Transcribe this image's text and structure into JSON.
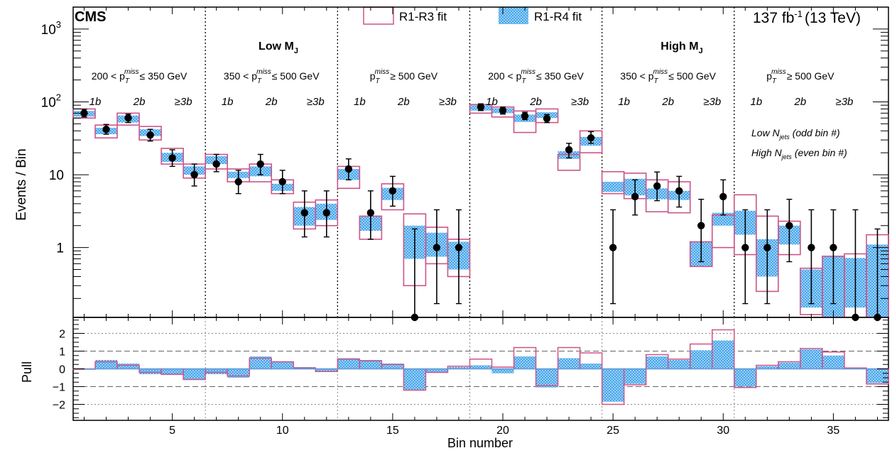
{
  "header": {
    "experiment": "CMS",
    "lumi_value": "137 fb",
    "lumi_exp": "-1",
    "lumi_energy": "(13 TeV)"
  },
  "legend": {
    "r1r3": "R1-R3 fit",
    "r1r4": "R1-R4 fit"
  },
  "region_labels": {
    "low_main": "Low M",
    "low_sub": "J",
    "high_main": "High M",
    "high_sub": "J"
  },
  "met_labels": [
    {
      "pre": "200 < p",
      "sub": "T",
      "sup": "miss",
      "post": "≤ 350 GeV"
    },
    {
      "pre": "350 < p",
      "sub": "T",
      "sup": "miss",
      "post": "≤ 500 GeV"
    },
    {
      "pre": "p",
      "sub": "T",
      "sup": "miss",
      "post": "≥ 500 GeV"
    },
    {
      "pre": "200 < p",
      "sub": "T",
      "sup": "miss",
      "post": "≤ 350 GeV"
    },
    {
      "pre": "350 < p",
      "sub": "T",
      "sup": "miss",
      "post": "≤ 500 GeV"
    },
    {
      "pre": "p",
      "sub": "T",
      "sup": "miss",
      "post": "≥ 500 GeV"
    }
  ],
  "nb_labels": [
    "1b",
    "2b",
    "≥3b"
  ],
  "njets_labels": {
    "odd": {
      "pre": "Low N",
      "sub": "jets",
      "post": "(odd bin #)"
    },
    "even": {
      "pre": "High N",
      "sub": "jets",
      "post": "(even bin #)"
    }
  },
  "chart_data": {
    "type": "bar",
    "xlabel": "Bin number",
    "ylabel": "Events / Bin",
    "pull_ylabel": "Pull",
    "xlim": [
      0.5,
      37.5
    ],
    "ylim": [
      0.11,
      2000
    ],
    "y_scale": "log",
    "pull_ylim": [
      -2.9,
      2.9
    ],
    "x_ticks": [
      5,
      10,
      15,
      20,
      25,
      30,
      35
    ],
    "y_ticks": [
      {
        "value": 1000,
        "base": "10",
        "exp": "3"
      },
      {
        "value": 100,
        "base": "10",
        "exp": "2"
      },
      {
        "value": 10,
        "base": "10",
        "exp": ""
      },
      {
        "value": 1,
        "base": "1",
        "exp": ""
      }
    ],
    "pull_ticks": [
      "2",
      "1",
      "0",
      "−1",
      "−2"
    ],
    "pull_tick_values": [
      2,
      1,
      0,
      -1,
      -2
    ],
    "dividers": [
      6.5,
      12.5,
      18.5,
      24.5,
      30.5
    ],
    "bins": [
      1,
      2,
      3,
      4,
      5,
      6,
      7,
      8,
      9,
      10,
      11,
      12,
      13,
      14,
      15,
      16,
      17,
      18,
      19,
      20,
      21,
      22,
      23,
      24,
      25,
      26,
      27,
      28,
      29,
      30,
      31,
      32,
      33,
      34,
      35,
      36,
      37
    ],
    "series": [
      {
        "name": "R1-R3 fit",
        "style": "hollow",
        "color": "#cc5588",
        "low": [
          60,
          32,
          48,
          30,
          14,
          9,
          12,
          8,
          8,
          5.5,
          1.8,
          2,
          6.5,
          1.3,
          3.3,
          0.3,
          0.6,
          0.4,
          70,
          62,
          38,
          52,
          11.5,
          20,
          5.5,
          4.7,
          3.1,
          3,
          0.55,
          1,
          0.8,
          0.25,
          0.8,
          0.12,
          0.05,
          0.04,
          0.03
        ],
        "high": [
          80,
          48,
          70,
          46,
          23,
          14,
          19,
          12,
          14,
          8.5,
          4.2,
          4.5,
          13,
          2.7,
          7.5,
          2.9,
          1.9,
          1.3,
          92,
          85,
          75,
          80,
          19,
          40,
          11,
          10.5,
          8.5,
          8,
          1.2,
          2.8,
          5.3,
          2.7,
          2.3,
          0.52,
          0.76,
          0.82,
          1.5
        ]
      },
      {
        "name": "R1-R4 fit",
        "style": "hatched",
        "color": "#4aa8e8",
        "low": [
          63,
          36,
          52,
          34,
          15,
          10,
          14,
          9,
          9.5,
          6,
          2,
          2.4,
          8.5,
          1.7,
          4.5,
          0.7,
          0.75,
          0.5,
          76,
          70,
          53,
          60,
          16.5,
          25,
          5.8,
          5.2,
          4.6,
          4.5,
          0.55,
          2,
          1.5,
          0.4,
          1.1,
          0.15,
          0.1,
          0.15,
          0.1
        ],
        "high": [
          75,
          44,
          65,
          42,
          20,
          13,
          18,
          11,
          13,
          7.5,
          3.6,
          4,
          12,
          2.7,
          6.6,
          2,
          1.6,
          1.2,
          90,
          82,
          67,
          72,
          21,
          33,
          8,
          8.8,
          6.5,
          6,
          1.2,
          3,
          3.2,
          1.3,
          2,
          0.5,
          0.75,
          0.72,
          1.1
        ]
      },
      {
        "name": "Data",
        "style": "points",
        "color": "#000000",
        "values": [
          70,
          42,
          60,
          35,
          17,
          10,
          14,
          8,
          14,
          8,
          3,
          3,
          12,
          3,
          6,
          0.1,
          1,
          1,
          85,
          76,
          64,
          59,
          22,
          32,
          1,
          5,
          7,
          6,
          2,
          5,
          1,
          1,
          2,
          1,
          1,
          0.1,
          0.1
        ],
        "err_low": [
          62,
          36,
          52,
          29,
          13,
          7,
          11,
          5.5,
          10,
          5.5,
          1.4,
          1.4,
          8.5,
          1.3,
          3.7,
          0.1,
          0.17,
          0.17,
          76,
          68,
          57,
          52,
          17,
          27,
          0.17,
          2.8,
          4.4,
          3.6,
          0.64,
          2.8,
          0.17,
          0.17,
          0.64,
          0.17,
          0.17,
          0.1,
          0.1
        ],
        "err_high": [
          79,
          49,
          68,
          42,
          22,
          14,
          19,
          11.5,
          19,
          11.5,
          6,
          6,
          16.5,
          6,
          9.5,
          1.8,
          3.3,
          3.3,
          94,
          85,
          72,
          67,
          27,
          39,
          3.3,
          8.5,
          10.9,
          9.5,
          4.6,
          8.5,
          3.3,
          3.3,
          4.6,
          3.3,
          3.3,
          3.3,
          1.8
        ]
      }
    ],
    "pull_series": [
      {
        "name": "R1-R3 fit",
        "values": [
          0,
          0.4,
          0.2,
          -0.2,
          -0.3,
          -0.6,
          -0.2,
          -0.4,
          0.6,
          0.4,
          0.05,
          -0.15,
          0.55,
          0.45,
          0.25,
          -1.2,
          -0.2,
          0.15,
          0.55,
          0.1,
          1.2,
          -0.95,
          1.2,
          0.9,
          -2,
          -0.9,
          0.8,
          0.55,
          1.4,
          2.2,
          -1.05,
          0.2,
          0.4,
          1.15,
          0.95,
          0.05,
          -0.85
        ]
      },
      {
        "name": "R1-R4 fit",
        "values": [
          0,
          0.5,
          0.3,
          -0.3,
          -0.35,
          -0.6,
          -0.3,
          -0.5,
          0.7,
          0.4,
          0.1,
          -0.15,
          0.6,
          0.5,
          0.3,
          -1.2,
          -0.2,
          0.1,
          0.2,
          -0.25,
          0.7,
          -1.05,
          0.6,
          0.3,
          -1.85,
          -0.85,
          0.7,
          0.5,
          1.05,
          1.6,
          -1,
          0.15,
          0.35,
          1.1,
          0.75,
          0,
          -0.8
        ]
      }
    ]
  }
}
